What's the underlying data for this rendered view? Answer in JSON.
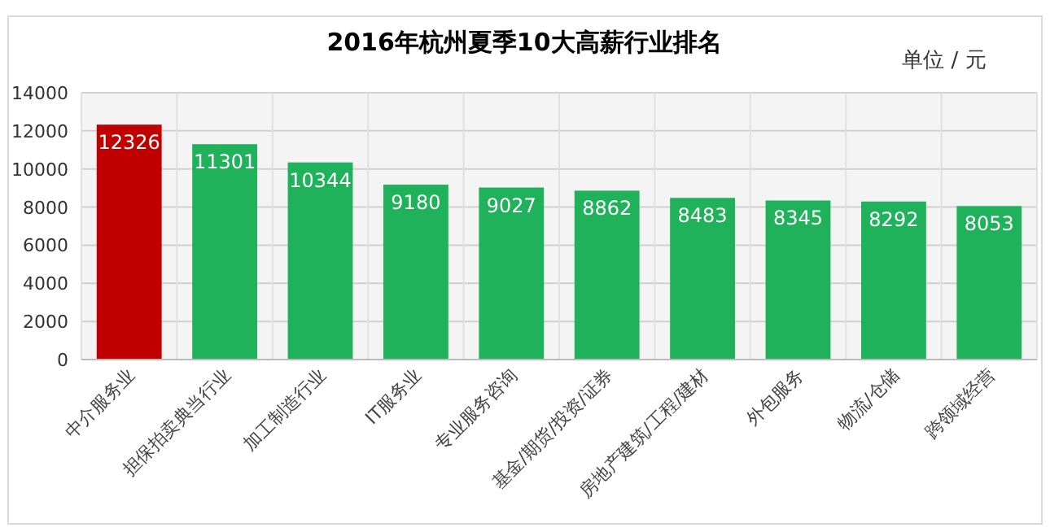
{
  "chart_data": {
    "type": "bar",
    "title": "2016年杭州夏季10大高薪行业排名",
    "ylabel": "单位 / 元",
    "categories": [
      "中介服务业",
      "担保拍卖典当行业",
      "加工制造行业",
      "IT服务业",
      "专业服务咨询",
      "基金/期货/投资/证券",
      "房地产建筑/工程/建材",
      "外包服务",
      "物流/仓储",
      "跨领域经营"
    ],
    "values": [
      12326,
      11301,
      10344,
      9180,
      9027,
      8862,
      8483,
      8345,
      8292,
      8053
    ],
    "colors": [
      "#c00000",
      "#1fb25a",
      "#1fb25a",
      "#1fb25a",
      "#1fb25a",
      "#1fb25a",
      "#1fb25a",
      "#1fb25a",
      "#1fb25a",
      "#1fb25a"
    ],
    "ylim": [
      0,
      14000
    ],
    "yticks": [
      0,
      2000,
      4000,
      6000,
      8000,
      10000,
      12000,
      14000
    ],
    "grid": "y",
    "data_labels": true
  }
}
